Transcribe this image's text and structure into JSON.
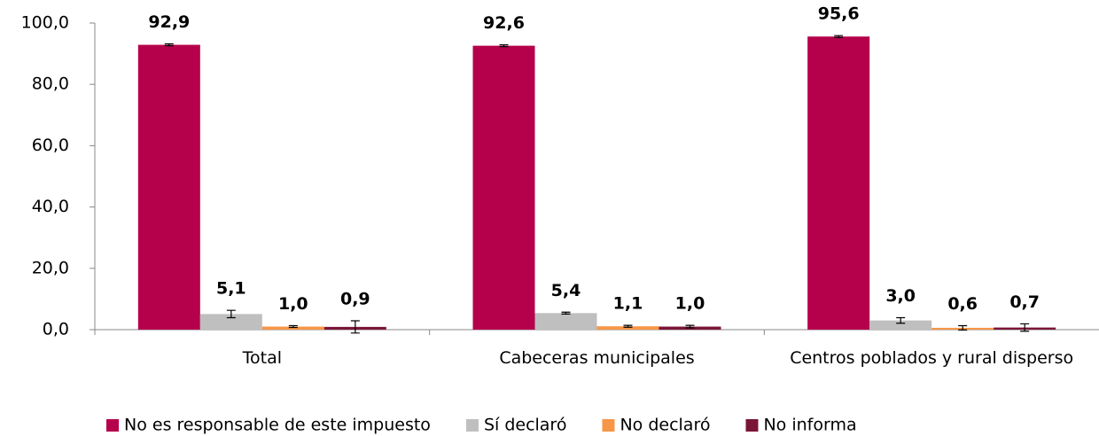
{
  "chart_data": {
    "type": "bar",
    "categories": [
      "Total",
      "Cabeceras municipales",
      "Centros poblados y rural disperso"
    ],
    "series": [
      {
        "name": "No es responsable de este impuesto",
        "color": "#b5004b",
        "values": [
          92.9,
          92.6,
          95.6
        ],
        "value_labels": [
          "92,9",
          "92,6",
          "95,6"
        ],
        "errors": [
          0.3,
          0.3,
          0.3
        ]
      },
      {
        "name": "Sí declaró",
        "color": "#bfbfbf",
        "values": [
          5.1,
          5.4,
          3.0
        ],
        "value_labels": [
          "5,1",
          "5,4",
          "3,0"
        ],
        "errors": [
          1.2,
          0.3,
          0.9
        ]
      },
      {
        "name": "No declaró",
        "color": "#f79646",
        "values": [
          1.0,
          1.1,
          0.6
        ],
        "value_labels": [
          "1,0",
          "1,1",
          "0,6"
        ],
        "errors": [
          0.3,
          0.3,
          0.7
        ]
      },
      {
        "name": "No informa",
        "color": "#7a1538",
        "values": [
          0.9,
          1.0,
          0.7
        ],
        "value_labels": [
          "0,9",
          "1,0",
          "0,7"
        ],
        "errors": [
          2.0,
          0.4,
          1.2
        ]
      }
    ],
    "ylim": [
      0,
      100
    ],
    "yticks": [
      {
        "value": 0,
        "label": "0,0"
      },
      {
        "value": 20,
        "label": "20,0"
      },
      {
        "value": 40,
        "label": "40,0"
      },
      {
        "value": 60,
        "label": "60,0"
      },
      {
        "value": 80,
        "label": "80,0"
      },
      {
        "value": 100,
        "label": "100,0"
      }
    ],
    "legend": "bottom"
  }
}
